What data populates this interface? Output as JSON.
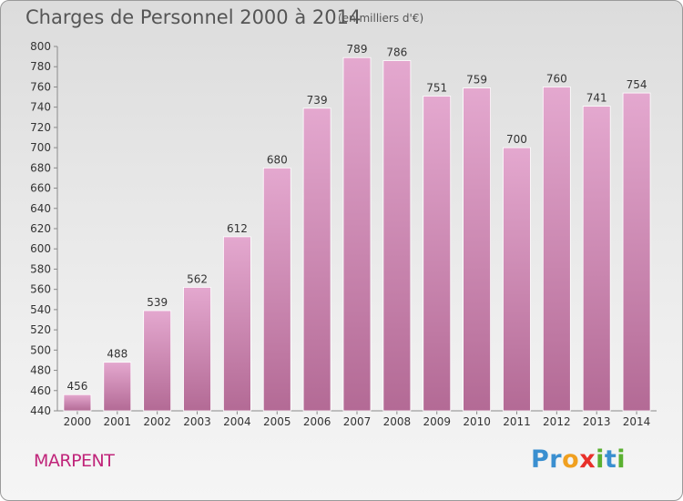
{
  "title": "Charges de Personnel 2000 à 2014",
  "unit_note": "(en milliers d'€)",
  "town": "MARPENT",
  "logo_text": "Proxiti",
  "colors": {
    "bar_top": "#e4a8cf",
    "bar_bottom": "#b36a95",
    "town": "#c0257a",
    "text": "#555555"
  },
  "chart_data": {
    "type": "bar",
    "categories": [
      "2000",
      "2001",
      "2002",
      "2003",
      "2004",
      "2005",
      "2006",
      "2007",
      "2008",
      "2009",
      "2010",
      "2011",
      "2012",
      "2013",
      "2014"
    ],
    "values": [
      456,
      488,
      539,
      562,
      612,
      680,
      739,
      789,
      786,
      751,
      759,
      700,
      760,
      741,
      754
    ],
    "ylim": [
      440,
      800
    ],
    "yticks": [
      440,
      460,
      480,
      500,
      520,
      540,
      560,
      580,
      600,
      620,
      640,
      660,
      680,
      700,
      720,
      740,
      760,
      780,
      800
    ],
    "grid": false,
    "legend": "none"
  }
}
